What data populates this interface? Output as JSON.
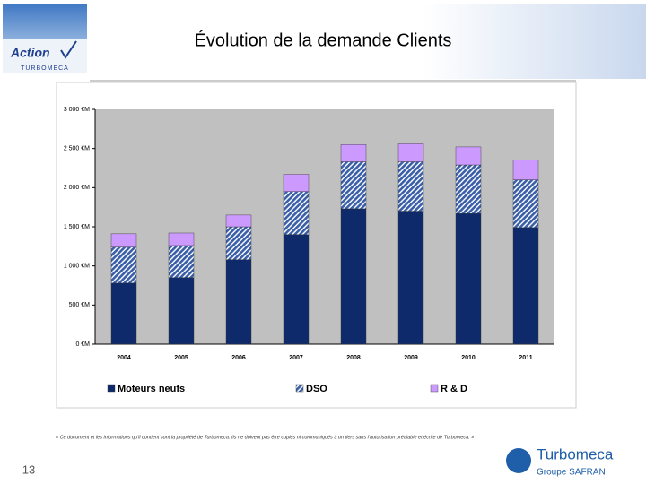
{
  "header": {
    "title": "Évolution de la demande Clients",
    "logo_text": "Action",
    "logo_brand": "TURBOMECA"
  },
  "chart_data": {
    "type": "stacked-bar",
    "categories": [
      "2004",
      "2005",
      "2006",
      "2007",
      "2008",
      "2009",
      "2010",
      "2011"
    ],
    "series": [
      {
        "name": "Moteurs neufs",
        "color": "#0f2a6b",
        "values": [
          780,
          850,
          1080,
          1400,
          1730,
          1700,
          1670,
          1490
        ]
      },
      {
        "name": "DSO",
        "color": "#3a5fa8",
        "values": [
          460,
          410,
          420,
          550,
          600,
          630,
          620,
          610
        ]
      },
      {
        "name": "R & D",
        "color": "#cc99ff",
        "values": [
          170,
          160,
          150,
          220,
          220,
          230,
          230,
          250
        ]
      }
    ],
    "ylim": [
      0,
      3000
    ],
    "yticks": [
      {
        "value": 0,
        "label": "0 €M"
      },
      {
        "value": 500,
        "label": "500 €M"
      },
      {
        "value": 1000,
        "label": "1 000 €M"
      },
      {
        "value": 1500,
        "label": "1 500 €M"
      },
      {
        "value": 2000,
        "label": "2 000 €M"
      },
      {
        "value": 2500,
        "label": "2 500 €M"
      },
      {
        "value": 3000,
        "label": "3 000 €M"
      }
    ],
    "grid": false
  },
  "footer": {
    "notice": "« Ce document et les informations qu'il contient sont la propriété de Turbomeca. Ils ne doivent pas être copiés ni communiqués à un tiers sans l'autorisation préalable et écrite de Turbomeca. »",
    "page": "13",
    "brand": "Turbomeca",
    "group": "Groupe SAFRAN"
  }
}
